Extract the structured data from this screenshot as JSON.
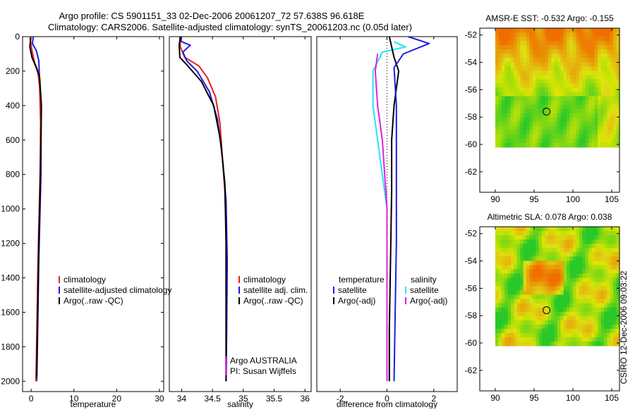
{
  "header": {
    "title_line1": "Argo profile: CS 5901151_33 02-Dec-2006 20061207_72 57.638S 96.618E",
    "title_line2": "Climatology: CARS2006. Satellite-adjusted climatology: synTS_20061203.nc (0.05d later)"
  },
  "footer_side_text": "CSIRO 12-Dec-2006 09:03:22",
  "colors": {
    "climatology": "#e8201c",
    "satellite": "#1c1ce0",
    "argo": "#000000",
    "sat_salt": "#22e6f0",
    "argo_salt": "#e020e0",
    "dot": "#000000"
  },
  "chart_data": [
    {
      "id": "temp",
      "type": "line",
      "xlabel": "temperature",
      "ylabel": "",
      "xlim": [
        -2,
        31
      ],
      "ylim": [
        2060,
        0
      ],
      "xticks": [
        0,
        10,
        20,
        30
      ],
      "xtick_labels": [
        "0",
        "10",
        "20",
        "30"
      ],
      "yticks": [
        0,
        200,
        400,
        600,
        800,
        1000,
        1200,
        1400,
        1600,
        1800,
        2000
      ],
      "ytick_labels": [
        "0",
        "200",
        "400",
        "600",
        "800",
        "1000",
        "1200",
        "1400",
        "1600",
        "1800",
        "2000"
      ],
      "legend": [
        {
          "label": "climatology",
          "color": "climatology"
        },
        {
          "label": "satellite-adjusted climatology",
          "color": "satellite"
        },
        {
          "label": "Argo(..raw -QC)",
          "color": "argo"
        }
      ],
      "series": [
        {
          "color": "satellite",
          "points": [
            [
              0.5,
              0
            ],
            [
              0.3,
              40
            ],
            [
              1.2,
              80
            ],
            [
              1.8,
              140
            ],
            [
              1.9,
              200
            ],
            [
              2.1,
              300
            ],
            [
              2.3,
              500
            ],
            [
              2.3,
              800
            ],
            [
              2.1,
              1000
            ],
            [
              1.8,
              1300
            ],
            [
              1.6,
              1600
            ],
            [
              1.4,
              1900
            ],
            [
              1.3,
              2000
            ]
          ]
        },
        {
          "color": "climatology",
          "points": [
            [
              -0.3,
              0
            ],
            [
              0.2,
              80
            ],
            [
              0.8,
              150
            ],
            [
              1.6,
              200
            ],
            [
              2.0,
              300
            ],
            [
              2.2,
              500
            ],
            [
              2.1,
              800
            ],
            [
              1.9,
              1000
            ],
            [
              1.6,
              1300
            ],
            [
              1.4,
              1600
            ],
            [
              1.2,
              1900
            ],
            [
              1.1,
              2000
            ]
          ]
        },
        {
          "color": "argo",
          "points": [
            [
              -0.1,
              10
            ],
            [
              -0.3,
              60
            ],
            [
              0.2,
              120
            ],
            [
              1.2,
              180
            ],
            [
              2.0,
              240
            ],
            [
              2.4,
              400
            ],
            [
              2.3,
              600
            ],
            [
              2.1,
              900
            ],
            [
              1.8,
              1200
            ],
            [
              1.6,
              1500
            ],
            [
              1.4,
              1800
            ],
            [
              1.3,
              1980
            ]
          ]
        }
      ]
    },
    {
      "id": "salt",
      "type": "line",
      "xlabel": "salinity",
      "ylabel": "",
      "xlim": [
        33.8,
        36.1
      ],
      "ylim": [
        2060,
        0
      ],
      "xticks": [
        34,
        34.5,
        35,
        35.5,
        36
      ],
      "xtick_labels": [
        "34",
        "34.5",
        "35",
        "35.5",
        "36"
      ],
      "yticks": [],
      "ytick_labels": [],
      "legend": [
        {
          "label": "climatology",
          "color": "climatology"
        },
        {
          "label": "satellite adj. clim.",
          "color": "satellite"
        },
        {
          "label": "Argo(..raw -QC)",
          "color": "argo"
        }
      ],
      "annotation": [
        "Argo AUSTRALIA",
        "PI: Susan Wijffels"
      ],
      "series": [
        {
          "color": "climatology",
          "points": [
            [
              33.97,
              0
            ],
            [
              33.98,
              60
            ],
            [
              34.05,
              120
            ],
            [
              34.28,
              170
            ],
            [
              34.42,
              240
            ],
            [
              34.55,
              350
            ],
            [
              34.62,
              500
            ],
            [
              34.66,
              700
            ],
            [
              34.7,
              900
            ],
            [
              34.72,
              1100
            ],
            [
              34.72,
              1400
            ],
            [
              34.72,
              1700
            ],
            [
              34.72,
              2000
            ]
          ]
        },
        {
          "color": "satellite",
          "points": [
            [
              33.97,
              0
            ],
            [
              34.0,
              30
            ],
            [
              34.14,
              50
            ],
            [
              34.02,
              90
            ],
            [
              34.08,
              140
            ],
            [
              34.25,
              200
            ],
            [
              34.45,
              320
            ],
            [
              34.58,
              480
            ],
            [
              34.66,
              700
            ],
            [
              34.72,
              950
            ],
            [
              34.74,
              1300
            ],
            [
              34.73,
              1700
            ],
            [
              34.72,
              2000
            ]
          ]
        },
        {
          "color": "argo",
          "points": [
            [
              33.98,
              0
            ],
            [
              33.96,
              50
            ],
            [
              33.97,
              120
            ],
            [
              34.1,
              170
            ],
            [
              34.32,
              260
            ],
            [
              34.52,
              400
            ],
            [
              34.63,
              600
            ],
            [
              34.7,
              850
            ],
            [
              34.72,
              1200
            ],
            [
              34.72,
              1600
            ],
            [
              34.72,
              2000
            ]
          ]
        }
      ]
    },
    {
      "id": "diff",
      "type": "line",
      "xlabel": "difference from climatology",
      "ylabel": "",
      "xlim": [
        -3,
        3
      ],
      "ylim": [
        2060,
        0
      ],
      "xticks": [
        -2,
        0,
        2
      ],
      "xtick_labels": [
        "-2",
        "0",
        "2"
      ],
      "yticks": [],
      "ytick_labels": [],
      "legend_temperature": {
        "header": "temperature",
        "items": [
          {
            "label": "satellite",
            "color": "satellite"
          },
          {
            "label": "Argo(-adj)",
            "color": "argo"
          }
        ]
      },
      "legend_salinity": {
        "header": "salinity",
        "items": [
          {
            "label": "satellite",
            "color": "sat_salt"
          },
          {
            "label": "Argo(-adj)",
            "color": "argo_salt"
          }
        ]
      },
      "series": [
        {
          "color": "dot",
          "dotted": true,
          "points": [
            [
              0,
              0
            ],
            [
              0,
              2000
            ]
          ]
        },
        {
          "color": "sat_salt",
          "points": [
            [
              0.3,
              30
            ],
            [
              0.8,
              60
            ],
            [
              -0.2,
              90
            ],
            [
              -0.6,
              200
            ],
            [
              -0.6,
              400
            ],
            [
              -0.4,
              600
            ],
            [
              -0.2,
              800
            ],
            [
              0,
              1000
            ],
            [
              0,
              1400
            ],
            [
              0,
              2000
            ]
          ]
        },
        {
          "color": "argo_salt",
          "points": [
            [
              -0.4,
              100
            ],
            [
              -0.5,
              200
            ],
            [
              -0.4,
              400
            ],
            [
              -0.2,
              600
            ],
            [
              -0.1,
              800
            ],
            [
              0,
              1000
            ],
            [
              0,
              1500
            ],
            [
              0,
              2000
            ]
          ]
        },
        {
          "color": "argo",
          "points": [
            [
              0.1,
              0
            ],
            [
              0.3,
              120
            ],
            [
              0.5,
              200
            ],
            [
              0.3,
              400
            ],
            [
              0.2,
              600
            ],
            [
              0.2,
              900
            ],
            [
              0.15,
              1300
            ],
            [
              0.1,
              1700
            ],
            [
              0.1,
              2000
            ]
          ]
        },
        {
          "color": "satellite",
          "points": [
            [
              0.9,
              0
            ],
            [
              1.8,
              40
            ],
            [
              0.7,
              100
            ],
            [
              0.3,
              180
            ],
            [
              0.4,
              400
            ],
            [
              0.4,
              800
            ],
            [
              0.4,
              1200
            ],
            [
              0.35,
              1600
            ],
            [
              0.3,
              2000
            ]
          ]
        }
      ]
    },
    {
      "id": "sst_map",
      "type": "heatmap",
      "title": "AMSR-E SST: -0.532 Argo: -0.155",
      "xlim": [
        88,
        106
      ],
      "ylim": [
        -63.5,
        -51.5
      ],
      "xticks": [
        90,
        95,
        100,
        105
      ],
      "xtick_labels": [
        "90",
        "95",
        "100",
        "105"
      ],
      "yticks": [
        -52,
        -54,
        -56,
        -58,
        -60,
        -62
      ],
      "ytick_labels": [
        "-52",
        "-54",
        "-56",
        "-58",
        "-60",
        "-62"
      ],
      "data_extent": {
        "lon": [
          90,
          106
        ],
        "lat": [
          -60.2,
          -51.5
        ]
      },
      "marker": {
        "lon": 96.6,
        "lat": -57.6
      },
      "pattern": "sst"
    },
    {
      "id": "sla_map",
      "type": "heatmap",
      "title": "Altimetric SLA: 0.078 Argo: 0.038",
      "xlim": [
        88,
        106
      ],
      "ylim": [
        -63.5,
        -51.5
      ],
      "xticks": [
        90,
        95,
        100,
        105
      ],
      "xtick_labels": [
        "90",
        "95",
        "100",
        "105"
      ],
      "yticks": [
        -52,
        -54,
        -56,
        -58,
        -60,
        -62
      ],
      "ytick_labels": [
        "-52",
        "-54",
        "-56",
        "-58",
        "-60",
        "-62"
      ],
      "data_extent": {
        "lon": [
          90,
          106
        ],
        "lat": [
          -60.2,
          -51.5
        ]
      },
      "marker": {
        "lon": 96.6,
        "lat": -57.6
      },
      "pattern": "sla"
    }
  ]
}
